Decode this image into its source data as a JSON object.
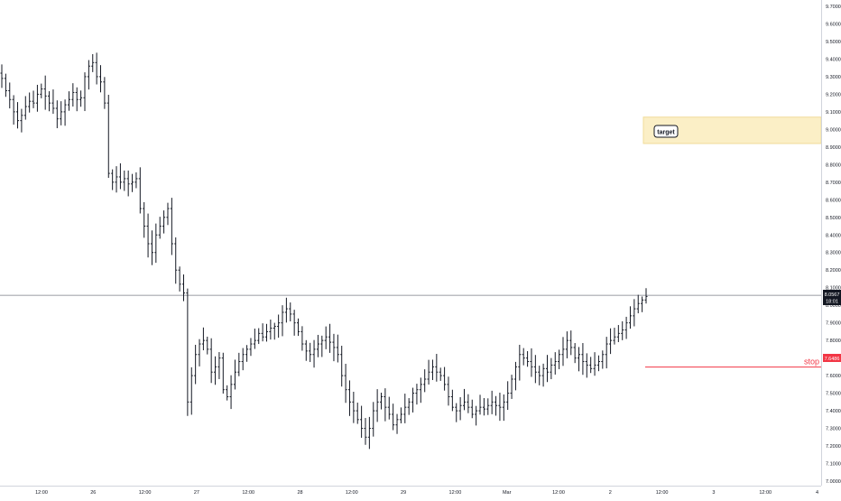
{
  "chart_data": {
    "type": "ohlc",
    "x_tick_labels": [
      "12:00",
      "26",
      "12:00",
      "27",
      "12:00",
      "28",
      "12:00",
      "29",
      "12:00",
      "Mar",
      "12:00",
      "2",
      "12:00",
      "3",
      "12:00",
      "4"
    ],
    "y_tick_labels": [
      "7.0000",
      "7.1000",
      "7.2000",
      "7.3000",
      "7.4000",
      "7.5000",
      "7.6000",
      "7.7000",
      "7.8000",
      "7.9000",
      "8.0000",
      "8.1000",
      "8.2000",
      "8.3000",
      "8.4000",
      "8.5000",
      "8.6000",
      "8.7000",
      "8.8000",
      "8.9000",
      "9.0000",
      "9.1000",
      "9.2000",
      "9.3000",
      "9.4000",
      "9.5000",
      "9.6000",
      "9.7000"
    ],
    "ylim": [
      6.95,
      9.75
    ],
    "grid": false,
    "closes": [
      9.29,
      9.22,
      9.17,
      9.1,
      9.05,
      9.08,
      9.13,
      9.16,
      9.15,
      9.2,
      9.23,
      9.19,
      9.15,
      9.12,
      9.06,
      9.1,
      9.14,
      9.17,
      9.21,
      9.17,
      9.18,
      9.3,
      9.36,
      9.38,
      9.3,
      9.27,
      9.15,
      8.75,
      8.7,
      8.73,
      8.7,
      8.72,
      8.69,
      8.7,
      8.72,
      8.55,
      8.45,
      8.35,
      8.3,
      8.4,
      8.45,
      8.5,
      8.55,
      8.35,
      8.2,
      8.12,
      8.07,
      7.45,
      7.6,
      7.72,
      7.78,
      7.8,
      7.75,
      7.62,
      7.65,
      7.7,
      7.52,
      7.48,
      7.55,
      7.62,
      7.68,
      7.72,
      7.75,
      7.78,
      7.8,
      7.84,
      7.82,
      7.85,
      7.87,
      7.88,
      7.9,
      7.96,
      7.98,
      7.95,
      7.9,
      7.85,
      7.78,
      7.74,
      7.72,
      7.75,
      7.78,
      7.8,
      7.82,
      7.79,
      7.76,
      7.72,
      7.6,
      7.52,
      7.45,
      7.4,
      7.35,
      7.3,
      7.25,
      7.3,
      7.4,
      7.45,
      7.48,
      7.42,
      7.38,
      7.32,
      7.35,
      7.38,
      7.42,
      7.45,
      7.5,
      7.52,
      7.55,
      7.58,
      7.62,
      7.65,
      7.62,
      7.6,
      7.55,
      7.48,
      7.42,
      7.4,
      7.43,
      7.45,
      7.42,
      7.38,
      7.4,
      7.42,
      7.41,
      7.43,
      7.45,
      7.43,
      7.42,
      7.45,
      7.5,
      7.58,
      7.65,
      7.72,
      7.7,
      7.68,
      7.65,
      7.62,
      7.6,
      7.64,
      7.62,
      7.66,
      7.68,
      7.72,
      7.75,
      7.8,
      7.76,
      7.7,
      7.72,
      7.68,
      7.66,
      7.64,
      7.66,
      7.68,
      7.72,
      7.78,
      7.8,
      7.82,
      7.84,
      7.86,
      7.9,
      7.94,
      7.98,
      8.01,
      8.03,
      8.05
    ],
    "last_price_label": "8.0567",
    "countdown_label": "18:01",
    "stop": {
      "label": "stop",
      "price_label": "7.6486",
      "value": 7.6486,
      "color": "#f23645"
    },
    "target": {
      "label": "target",
      "low": 8.92,
      "high": 9.07,
      "fill": "#fbefc6"
    },
    "current_price": 8.0567
  }
}
